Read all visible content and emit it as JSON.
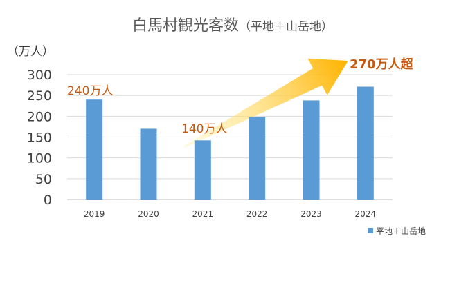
{
  "colors": {
    "bar": "#5B9BD5",
    "gridline": "#D9D9D9",
    "axis_text": "#404040",
    "title_text": "#595959",
    "annotation": "#C55A11",
    "arrow_start": "#FFF3A6",
    "arrow_end": "#FFB300"
  },
  "chart_data": {
    "type": "bar",
    "title": "白馬村観光客数",
    "subtitle": "（平地＋山岳地）",
    "ylabel": "（万人）",
    "xlabel": "",
    "categories": [
      "2019",
      "2020",
      "2021",
      "2022",
      "2023",
      "2024"
    ],
    "series": [
      {
        "name": "平地＋山岳地",
        "values": [
          240,
          170,
          142,
          198,
          238,
          271
        ]
      }
    ],
    "ylim": [
      0,
      300
    ],
    "yticks": [
      0,
      50,
      100,
      150,
      200,
      250,
      300
    ],
    "grid": true,
    "legend_position": "bottom-right",
    "annotations": [
      {
        "text": "240万人",
        "category": "2019",
        "emphasis": false
      },
      {
        "text": "140万人",
        "category": "2021",
        "emphasis": false
      },
      {
        "text": "270万人超",
        "category": "2024",
        "emphasis": true
      }
    ],
    "trend_arrow": {
      "from_category": "2021",
      "to_category": "2024"
    }
  }
}
